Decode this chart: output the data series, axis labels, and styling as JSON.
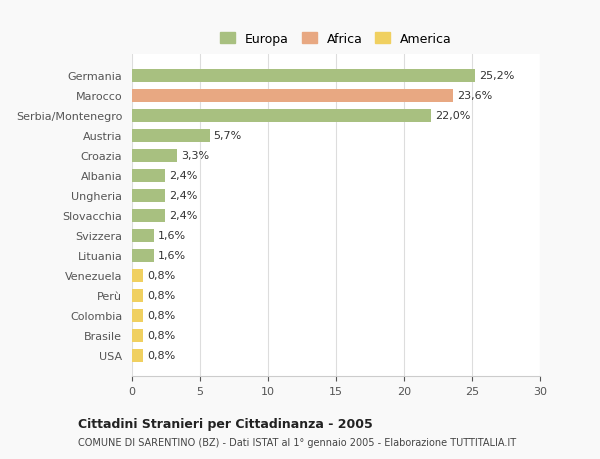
{
  "categories": [
    "USA",
    "Brasile",
    "Colombia",
    "Perù",
    "Venezuela",
    "Lituania",
    "Svizzera",
    "Slovacchia",
    "Ungheria",
    "Albania",
    "Croazia",
    "Austria",
    "Serbia/Montenegro",
    "Marocco",
    "Germania"
  ],
  "values": [
    0.8,
    0.8,
    0.8,
    0.8,
    0.8,
    1.6,
    1.6,
    2.4,
    2.4,
    2.4,
    3.3,
    5.7,
    22.0,
    23.6,
    25.2
  ],
  "labels": [
    "0,8%",
    "0,8%",
    "0,8%",
    "0,8%",
    "0,8%",
    "1,6%",
    "1,6%",
    "2,4%",
    "2,4%",
    "2,4%",
    "3,3%",
    "5,7%",
    "22,0%",
    "23,6%",
    "25,2%"
  ],
  "colors": [
    "#f0d060",
    "#f0d060",
    "#f0d060",
    "#f0d060",
    "#f0d060",
    "#a8c080",
    "#a8c080",
    "#a8c080",
    "#a8c080",
    "#a8c080",
    "#a8c080",
    "#a8c080",
    "#a8c080",
    "#e8a882",
    "#a8c080"
  ],
  "continent": [
    "America",
    "America",
    "America",
    "America",
    "America",
    "Europa",
    "Europa",
    "Europa",
    "Europa",
    "Europa",
    "Europa",
    "Europa",
    "Europa",
    "Africa",
    "Europa"
  ],
  "legend_labels": [
    "Europa",
    "Africa",
    "America"
  ],
  "legend_colors": [
    "#a8c080",
    "#e8a882",
    "#f0d060"
  ],
  "title_bold": "Cittadini Stranieri per Cittadinanza - 2005",
  "subtitle": "COMUNE DI SARENTINO (BZ) - Dati ISTAT al 1° gennaio 2005 - Elaborazione TUTTITALIA.IT",
  "xlim": [
    0,
    30
  ],
  "xticks": [
    0,
    5,
    10,
    15,
    20,
    25,
    30
  ],
  "bg_color": "#f9f9f9",
  "bar_bg_color": "#ffffff",
  "grid_color": "#dddddd"
}
